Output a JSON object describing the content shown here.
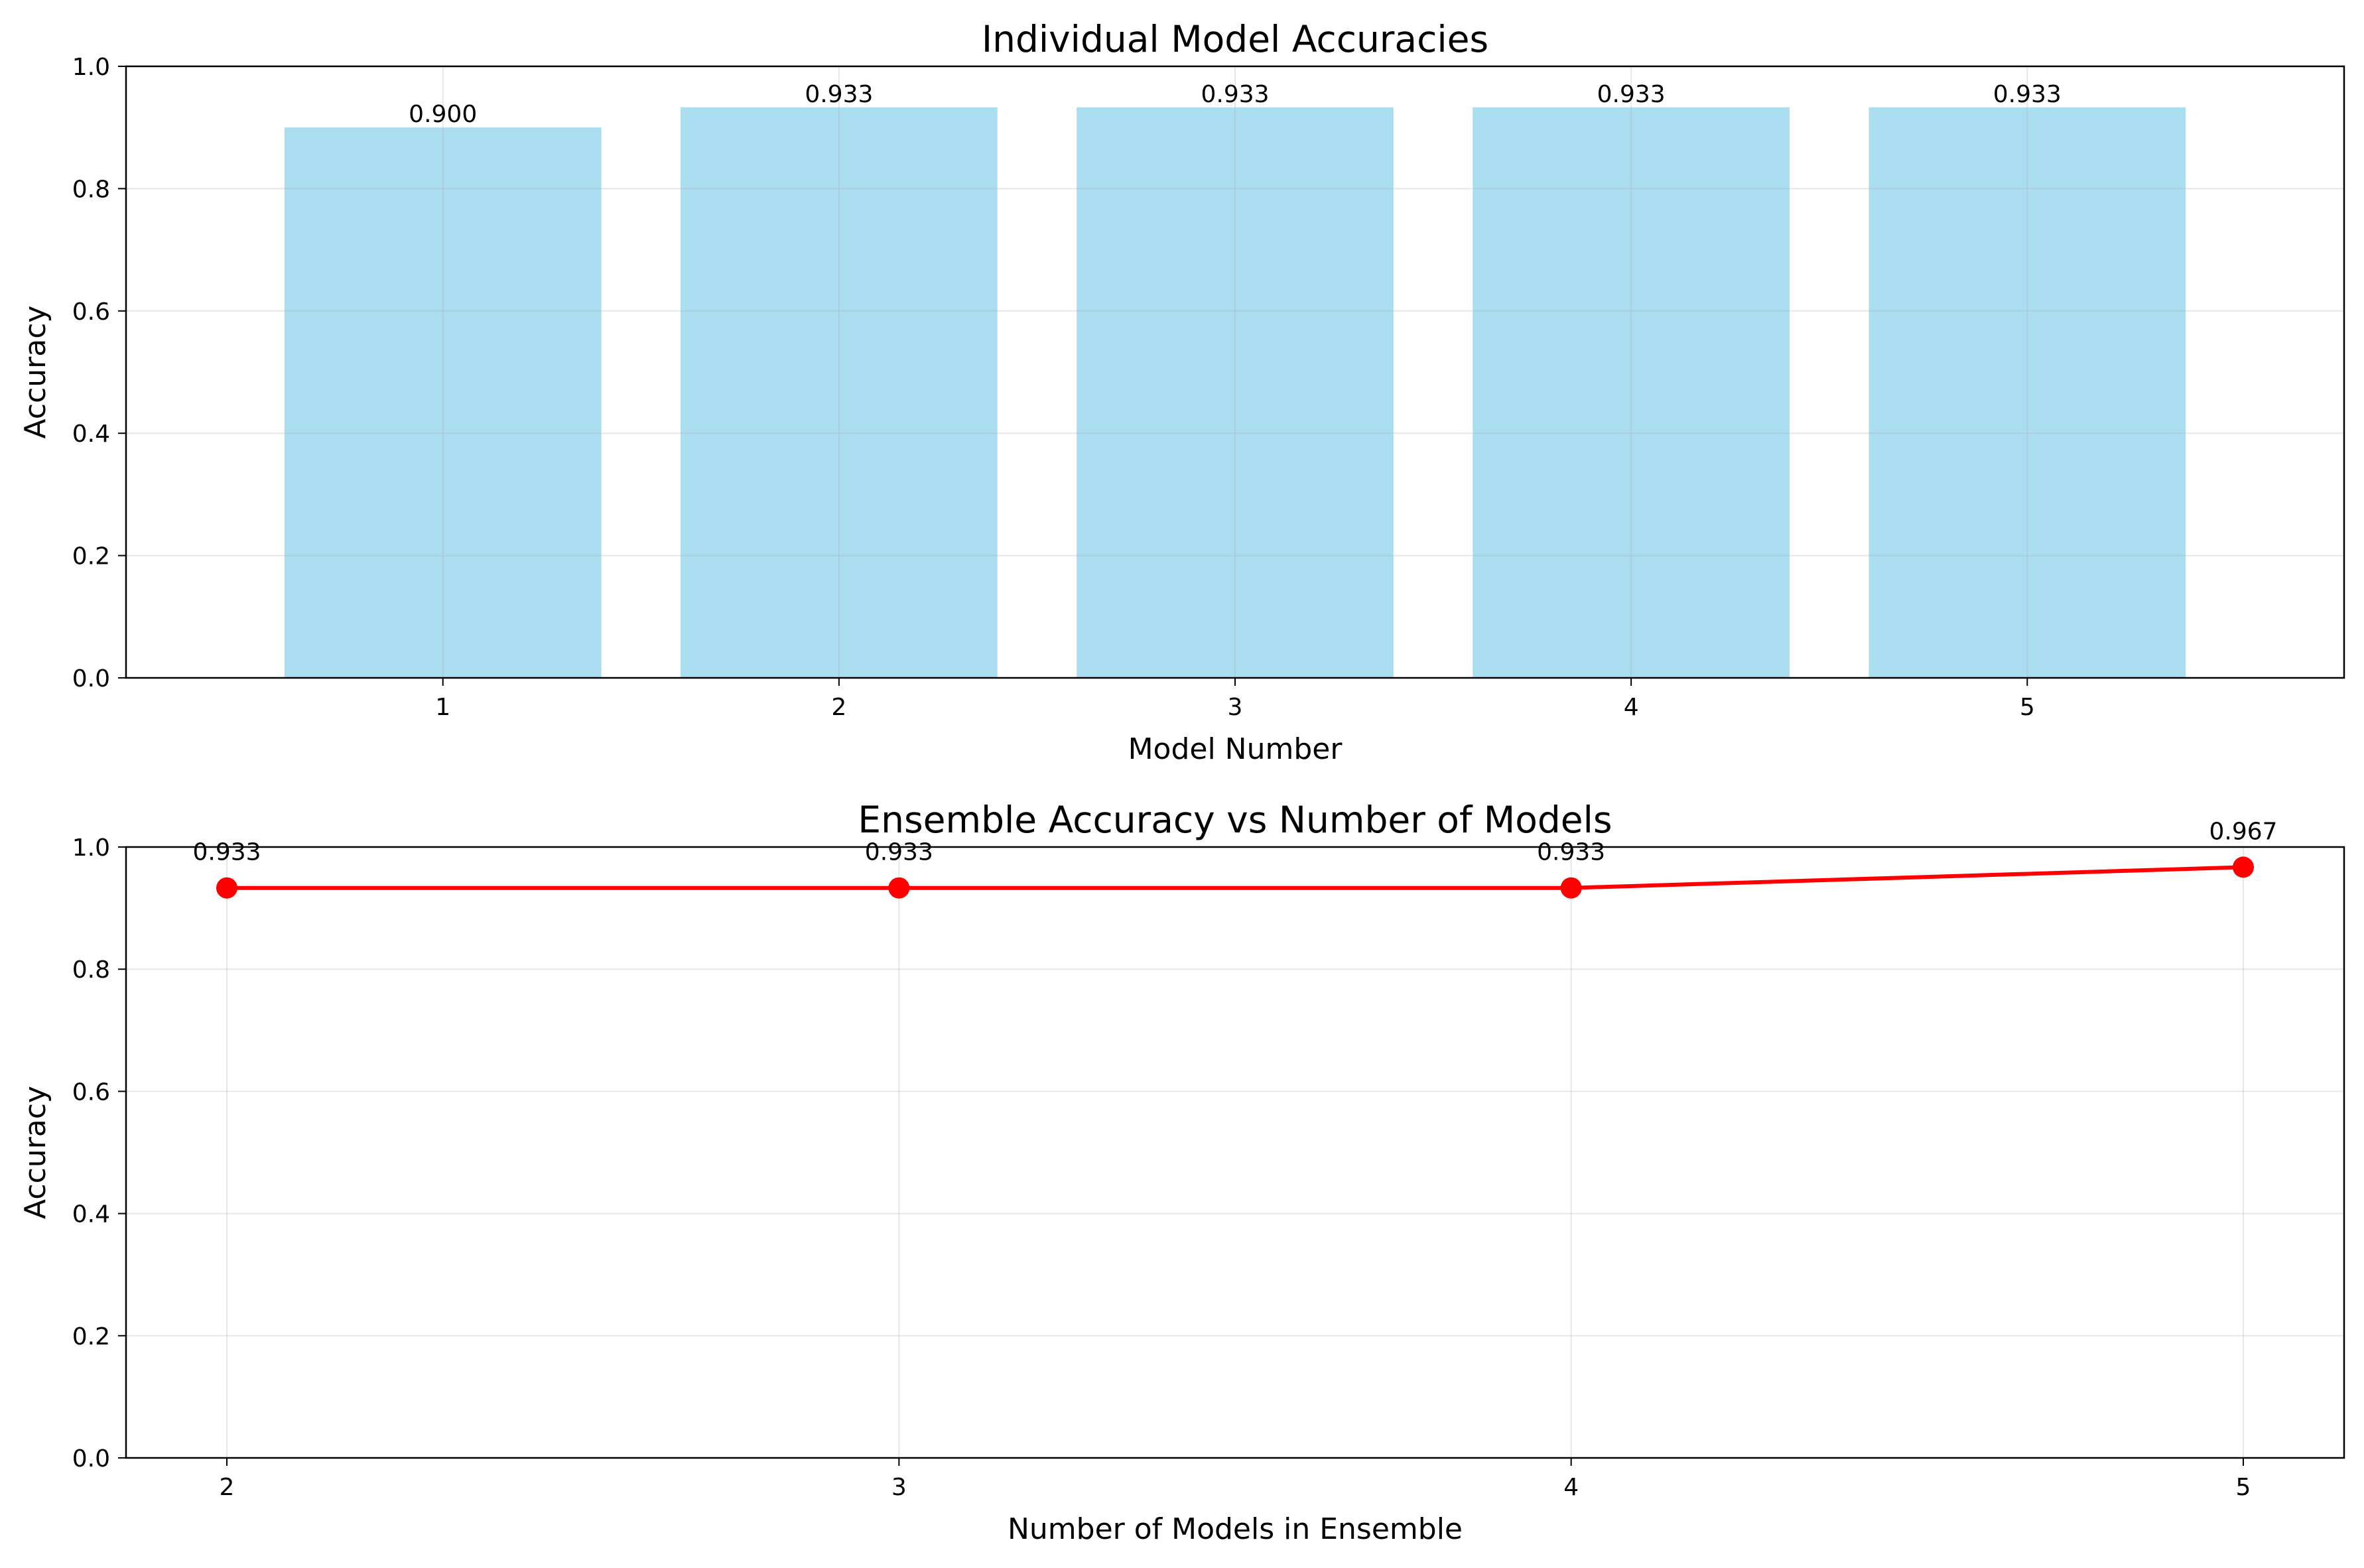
{
  "chart_data": [
    {
      "type": "bar",
      "title": "Individual Model Accuracies",
      "xlabel": "Model Number",
      "ylabel": "Accuracy",
      "categories": [
        "1",
        "2",
        "3",
        "4",
        "5"
      ],
      "values": [
        0.9,
        0.933,
        0.933,
        0.933,
        0.933
      ],
      "data_labels": [
        "0.900",
        "0.933",
        "0.933",
        "0.933",
        "0.933"
      ],
      "ylim": [
        0,
        1
      ],
      "yticks": [
        "0.0",
        "0.2",
        "0.4",
        "0.6",
        "0.8",
        "1.0"
      ],
      "grid": true,
      "colors": {
        "bar": "#87CEEB"
      }
    },
    {
      "type": "line",
      "title": "Ensemble Accuracy vs Number of Models",
      "xlabel": "Number of Models in Ensemble",
      "ylabel": "Accuracy",
      "x": [
        2,
        3,
        4,
        5
      ],
      "xticks": [
        "2",
        "3",
        "4",
        "5"
      ],
      "values": [
        0.933,
        0.933,
        0.933,
        0.967
      ],
      "data_labels": [
        "0.933",
        "0.933",
        "0.933",
        "0.967"
      ],
      "ylim": [
        0,
        1
      ],
      "yticks": [
        "0.0",
        "0.2",
        "0.4",
        "0.6",
        "0.8",
        "1.0"
      ],
      "grid": true,
      "colors": {
        "line": "#FF0000",
        "marker": "#FF0000"
      }
    }
  ]
}
